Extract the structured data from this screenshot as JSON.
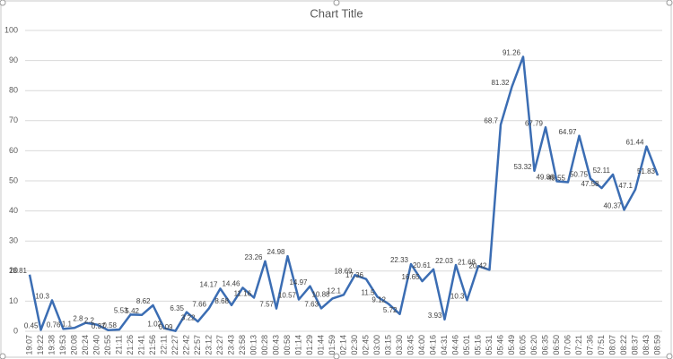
{
  "chart_data": {
    "type": "line",
    "title": "Chart Title",
    "categories": [
      "19:07",
      "19:22",
      "19:38",
      "19:53",
      "20:08",
      "20:24",
      "20:40",
      "20:55",
      "21:11",
      "21:26",
      "21:41",
      "21:56",
      "22:11",
      "22:27",
      "22:42",
      "22:57",
      "23:12",
      "23:27",
      "23:43",
      "23:58",
      "00:13",
      "00:28",
      "00:43",
      "00:58",
      "01:14",
      "01:29",
      "01:44",
      "01:59",
      "02:14",
      "02:30",
      "02:45",
      "03:00",
      "03:15",
      "03:30",
      "03:45",
      "04:00",
      "04:16",
      "04:31",
      "04:46",
      "05:01",
      "05:16",
      "05:31",
      "05:46",
      "05:49",
      "06:05",
      "06:20",
      "06:35",
      "06:50",
      "07:06",
      "07:21",
      "07:36",
      "07:51",
      "08:07",
      "08:22",
      "08:37",
      "08:43",
      "08:59"
    ],
    "series": [
      {
        "color": "#3b6db3",
        "values": [
          18.81,
          0.45,
          10.3,
          0.76,
          1.1,
          2.8,
          2.2,
          0.37,
          0.58,
          5.53,
          5.42,
          8.62,
          1.02,
          0.09,
          6.35,
          3.22,
          7.66,
          14.17,
          8.68,
          14.46,
          11.16,
          23.26,
          7.57,
          24.98,
          10.57,
          14.97,
          7.63,
          10.88,
          12.1,
          18.69,
          17.36,
          11.5,
          9.12,
          5.72,
          22.33,
          16.65,
          20.61,
          3.93,
          22.03,
          10.3,
          21.68,
          20.42,
          68.7,
          81.32,
          91.26,
          53.32,
          67.79,
          49.86,
          49.55,
          64.97,
          50.75,
          47.58,
          52.11,
          40.37,
          47.1,
          61.44,
          51.83
        ]
      }
    ],
    "ylim": [
      0,
      100
    ],
    "yticks": [
      0,
      10,
      20,
      30,
      40,
      50,
      60,
      70,
      80,
      90,
      100
    ],
    "grid": true
  }
}
